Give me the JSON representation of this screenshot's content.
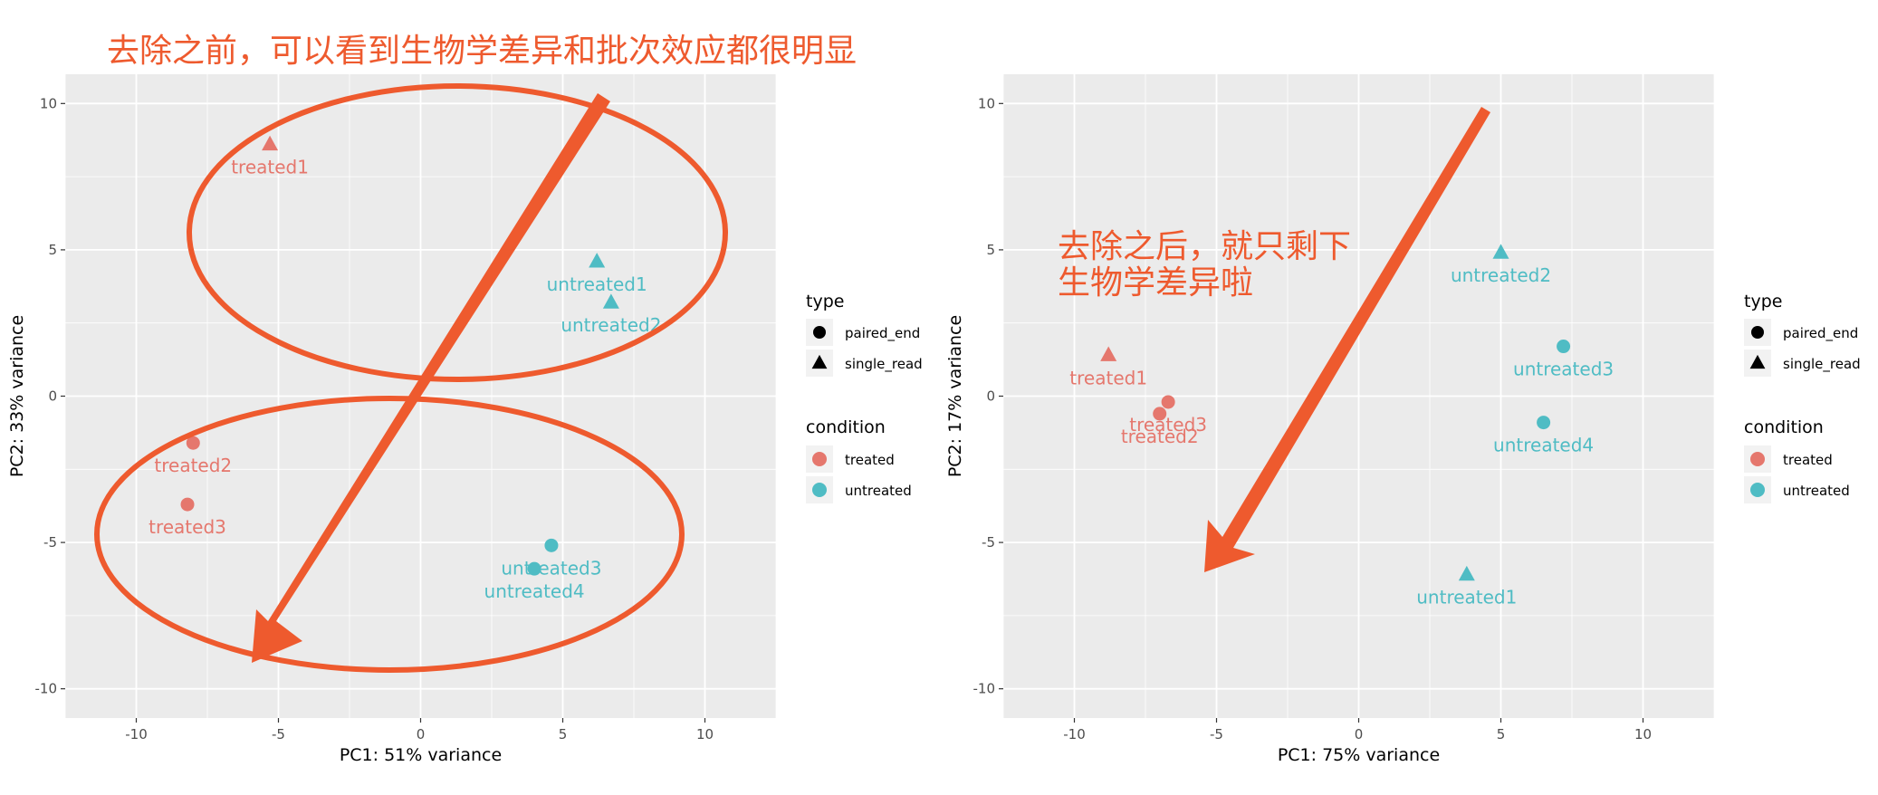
{
  "colors": {
    "treated": "#e5776d",
    "untreated": "#4fbcc4",
    "panel_bg": "#ebebeb",
    "grid": "#ffffff",
    "annotation": "#ee5a2e"
  },
  "chart_data": [
    {
      "type": "scatter",
      "xlabel": "PC1: 51% variance",
      "ylabel": "PC2: 33% variance",
      "xlim": [
        -12.5,
        12.5
      ],
      "ylim": [
        -11,
        11
      ],
      "xticks": [
        -10,
        -5,
        0,
        5,
        10
      ],
      "yticks": [
        -10,
        -5,
        0,
        5,
        10
      ],
      "xtick_labels": [
        "-10",
        "-5",
        "0",
        "5",
        "10"
      ],
      "ytick_labels": [
        "-10",
        "-5",
        "0",
        "5",
        "10"
      ],
      "grid": true,
      "legend_position": "right",
      "annotation": "去除之前，可以看到生物学差异和批次效应都很明显",
      "points": [
        {
          "label": "treated1",
          "x": -5.3,
          "y": 8.6,
          "condition": "treated",
          "type": "single_read"
        },
        {
          "label": "treated2",
          "x": -8.0,
          "y": -1.6,
          "condition": "treated",
          "type": "paired_end"
        },
        {
          "label": "treated3",
          "x": -8.2,
          "y": -3.7,
          "condition": "treated",
          "type": "paired_end"
        },
        {
          "label": "untreated1",
          "x": 6.2,
          "y": 4.6,
          "condition": "untreated",
          "type": "single_read"
        },
        {
          "label": "untreated2",
          "x": 6.7,
          "y": 3.2,
          "condition": "untreated",
          "type": "single_read"
        },
        {
          "label": "untreated3",
          "x": 4.6,
          "y": -5.1,
          "condition": "untreated",
          "type": "paired_end"
        },
        {
          "label": "untreated4",
          "x": 4.0,
          "y": -5.9,
          "condition": "untreated",
          "type": "paired_end"
        }
      ]
    },
    {
      "type": "scatter",
      "xlabel": "PC1: 75% variance",
      "ylabel": "PC2: 17% variance",
      "xlim": [
        -12.5,
        12.5
      ],
      "ylim": [
        -11,
        11
      ],
      "xticks": [
        -10,
        -5,
        0,
        5,
        10
      ],
      "yticks": [
        -10,
        -5,
        0,
        5,
        10
      ],
      "xtick_labels": [
        "-10",
        "-5",
        "0",
        "5",
        "10"
      ],
      "ytick_labels": [
        "-10",
        "-5",
        "0",
        "5",
        "10"
      ],
      "grid": true,
      "legend_position": "right",
      "annotation_lines": [
        "去除之后，就只剩下",
        "生物学差异啦"
      ],
      "points": [
        {
          "label": "treated1",
          "x": -8.8,
          "y": 1.4,
          "condition": "treated",
          "type": "single_read"
        },
        {
          "label": "treated2",
          "x": -7.0,
          "y": -0.6,
          "condition": "treated",
          "type": "paired_end"
        },
        {
          "label": "treated3",
          "x": -6.7,
          "y": -0.2,
          "condition": "treated",
          "type": "paired_end"
        },
        {
          "label": "untreated1",
          "x": 3.8,
          "y": -6.1,
          "condition": "untreated",
          "type": "single_read"
        },
        {
          "label": "untreated2",
          "x": 5.0,
          "y": 4.9,
          "condition": "untreated",
          "type": "single_read"
        },
        {
          "label": "untreated3",
          "x": 7.2,
          "y": 1.7,
          "condition": "untreated",
          "type": "paired_end"
        },
        {
          "label": "untreated4",
          "x": 6.5,
          "y": -0.9,
          "condition": "untreated",
          "type": "paired_end"
        }
      ]
    }
  ],
  "legend": {
    "type_title": "type",
    "type_items": [
      "paired_end",
      "single_read"
    ],
    "condition_title": "condition",
    "condition_items": [
      "treated",
      "untreated"
    ]
  }
}
